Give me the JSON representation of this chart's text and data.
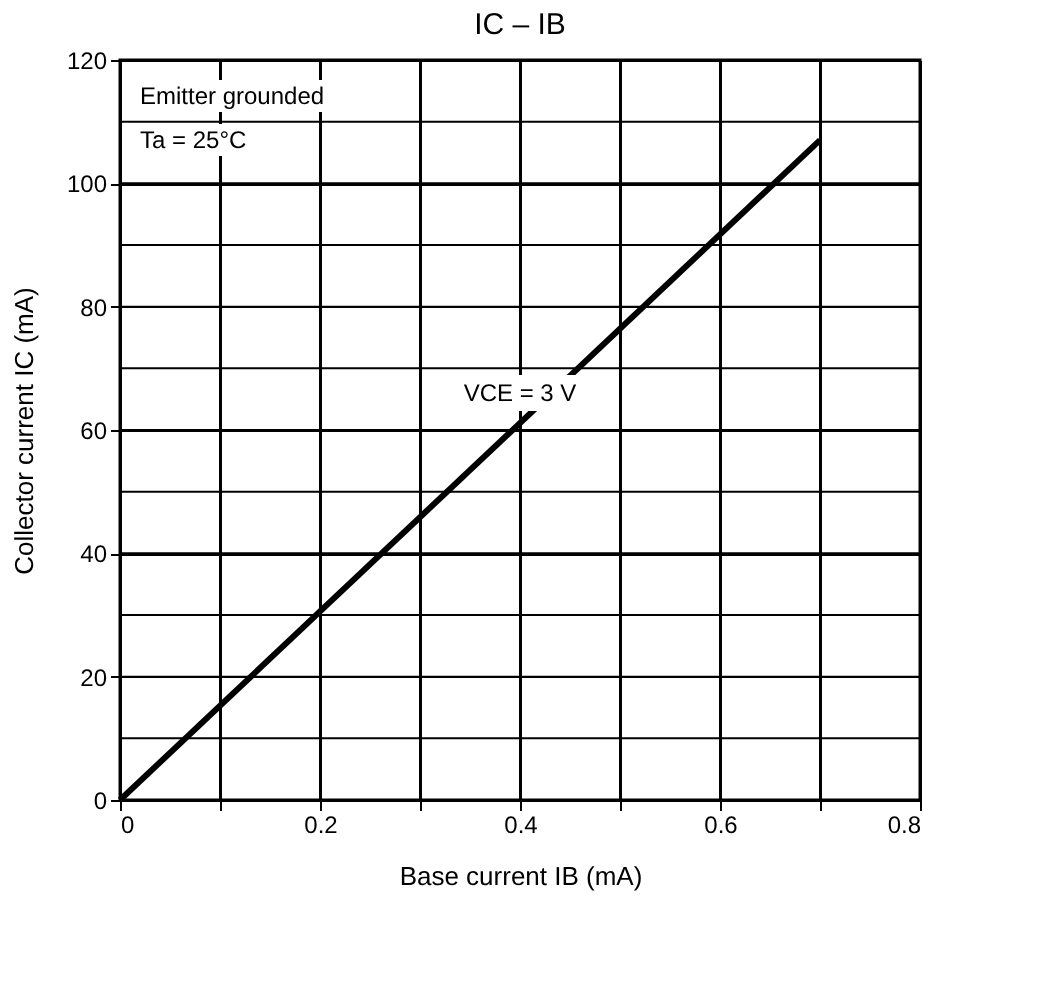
{
  "chart_data": {
    "type": "line",
    "title": "IC – IB",
    "xlabel": "Base current   IB   (mA)",
    "ylabel": "Collector current   IC   (mA)",
    "x": [
      0,
      0.7
    ],
    "series": [
      {
        "color": "#000000",
        "values": [
          0,
          107
        ]
      }
    ],
    "xlim": [
      0,
      0.8
    ],
    "ylim": [
      0,
      120
    ],
    "xticks": [
      0,
      {
        "value": 0.1,
        "label": null
      },
      0.2,
      {
        "value": 0.3,
        "label": null
      },
      0.4,
      {
        "value": 0.5,
        "label": null
      },
      0.6,
      {
        "value": 0.7,
        "label": null
      },
      0.8
    ],
    "yticks": [
      0,
      {
        "value": 10,
        "label": null
      },
      20,
      {
        "value": 30,
        "label": null
      },
      40,
      {
        "value": 50,
        "label": null
      },
      60,
      {
        "value": 70,
        "label": null
      },
      80,
      {
        "value": 90,
        "label": null
      },
      100,
      {
        "value": 110,
        "label": null
      },
      120
    ],
    "grid": true,
    "marker": "none",
    "line_style": "solid",
    "annotations": [
      "Emitter grounded",
      "Ta = 25°C",
      "VCE = 3 V"
    ]
  }
}
